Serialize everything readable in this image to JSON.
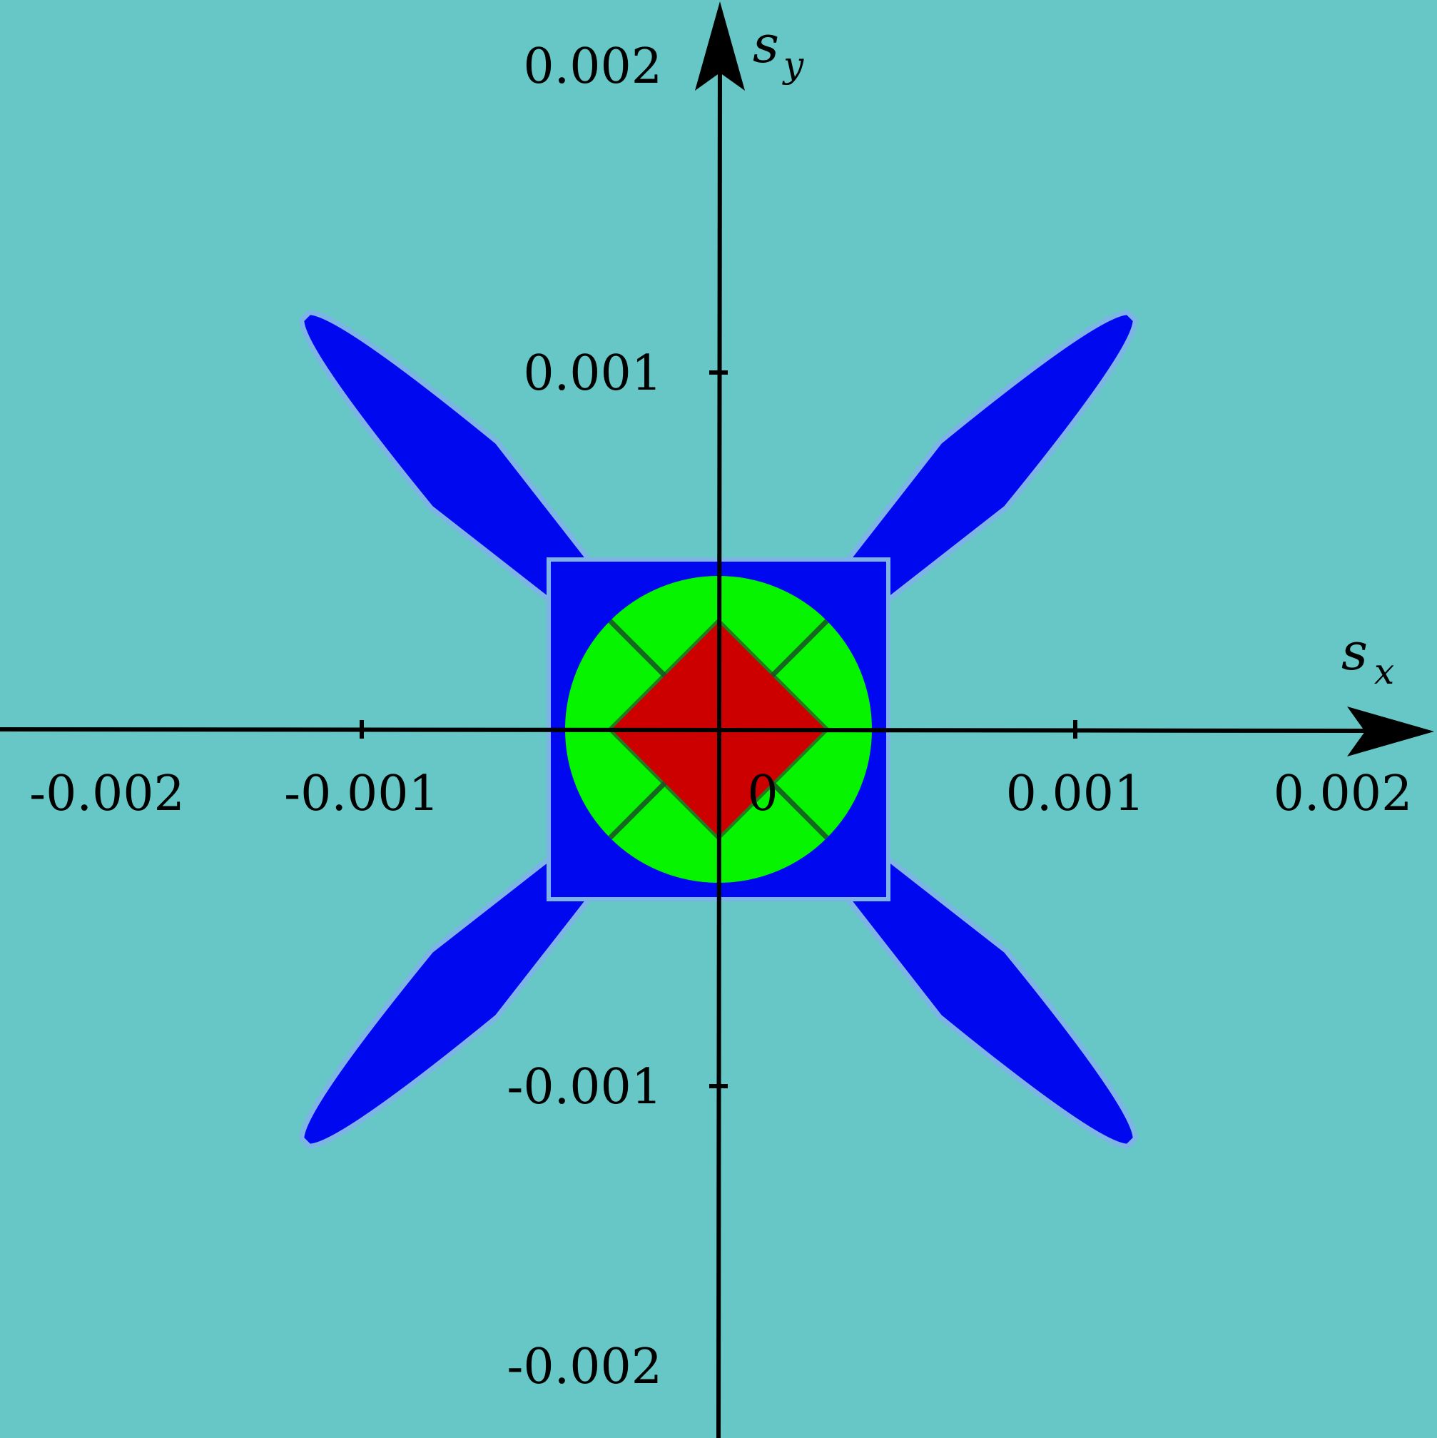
{
  "chart_data": {
    "type": "heatmap",
    "title": "",
    "xlabel": "s",
    "xlabel_sub": "x",
    "ylabel": "s",
    "ylabel_sub": "y",
    "xlim": [
      -0.002,
      0.002
    ],
    "ylim": [
      -0.002,
      0.002
    ],
    "x_ticks": [
      {
        "value": -0.002,
        "label": "-0.002"
      },
      {
        "value": -0.001,
        "label": "-0.001"
      },
      {
        "value": 0,
        "label": "0"
      },
      {
        "value": 0.001,
        "label": "0.001"
      },
      {
        "value": 0.002,
        "label": "0.002"
      }
    ],
    "y_ticks": [
      {
        "value": 0.002,
        "label": "0.002"
      },
      {
        "value": 0.001,
        "label": "0.001"
      },
      {
        "value": -0.001,
        "label": "-0.001"
      },
      {
        "value": -0.002,
        "label": "-0.002"
      }
    ],
    "colors": {
      "background": "#66c7c6",
      "halo": "#7eb3e6",
      "blue": "#0008f0",
      "green": "#07f400",
      "red": "#cd0000",
      "axis": "#000000"
    },
    "regions": [
      {
        "name": "arms",
        "color": "blue",
        "shape": "four arms along the diagonals",
        "tip_extent": [
          0.00115,
          0.00115
        ]
      },
      {
        "name": "central box",
        "color": "blue",
        "x_range": [
          -0.00047,
          0.00047
        ],
        "y_range": [
          -0.00047,
          0.00047
        ]
      },
      {
        "name": "ring",
        "color": "green",
        "radius": 0.00043
      },
      {
        "name": "core",
        "color": "red",
        "shape": "diamond",
        "half_width": 0.0003
      }
    ],
    "grid": false,
    "legend": "none"
  }
}
